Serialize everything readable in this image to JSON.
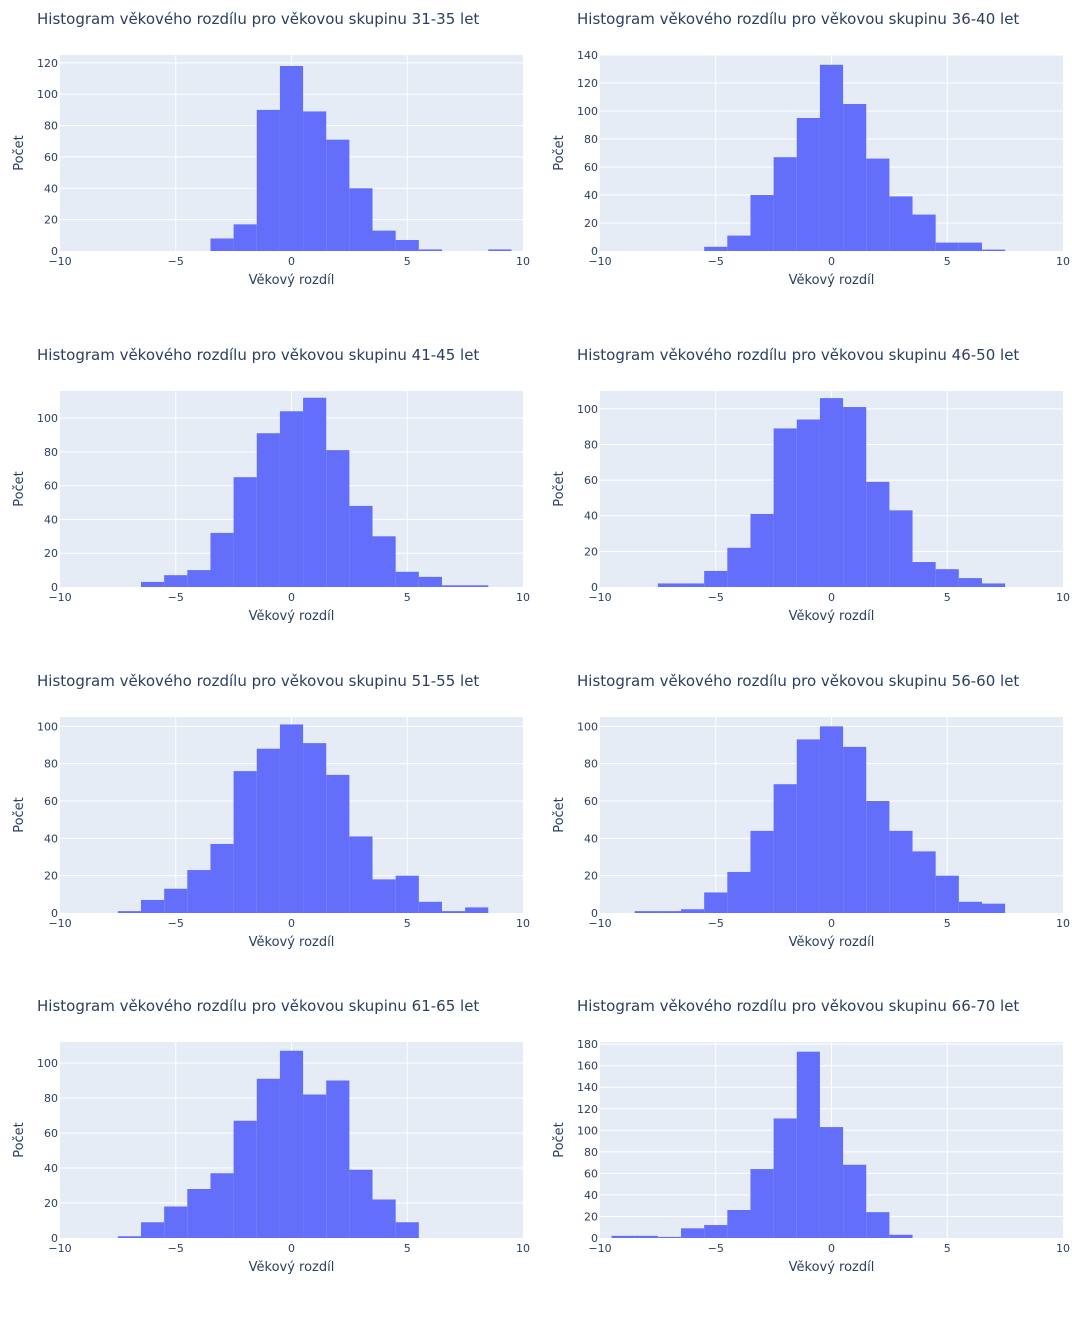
{
  "colors": {
    "bar": "#636efa",
    "plot_bg": "#e5ecf6",
    "grid": "#ffffff",
    "text": "#2a3f5f"
  },
  "chart_data": [
    {
      "type": "bar",
      "title": "Histogram věkového rozdílu pro věkovou skupinu 31-35 let",
      "xlabel": "Věkový rozdíl",
      "ylabel": "Počet",
      "xlim": [
        -10,
        10
      ],
      "ylim": [
        0,
        125
      ],
      "xticks": [
        "−10",
        "−5",
        "0",
        "5",
        "10"
      ],
      "xtick_values": [
        -10,
        -5,
        0,
        5,
        10
      ],
      "yticks": [
        0,
        20,
        40,
        60,
        80,
        100,
        120
      ],
      "bin_width": 1,
      "bin_edges_start": [
        -3.5,
        -2.5,
        -1.5,
        -0.5,
        0.5,
        1.5,
        2.5,
        3.5,
        4.5,
        5.5,
        8.5
      ],
      "values": [
        8,
        17,
        90,
        118,
        89,
        71,
        40,
        13,
        7,
        1,
        1
      ]
    },
    {
      "type": "bar",
      "title": "Histogram věkového rozdílu pro věkovou skupinu 36-40 let",
      "xlabel": "Věkový rozdíl",
      "ylabel": "Počet",
      "xlim": [
        -10,
        10
      ],
      "ylim": [
        0,
        140
      ],
      "xticks": [
        "−10",
        "−5",
        "0",
        "5",
        "10"
      ],
      "xtick_values": [
        -10,
        -5,
        0,
        5,
        10
      ],
      "yticks": [
        0,
        20,
        40,
        60,
        80,
        100,
        120,
        140
      ],
      "bin_width": 1,
      "bin_edges_start": [
        -5.5,
        -4.5,
        -3.5,
        -2.5,
        -1.5,
        -0.5,
        0.5,
        1.5,
        2.5,
        3.5,
        4.5,
        5.5,
        6.5
      ],
      "values": [
        3,
        11,
        40,
        67,
        95,
        133,
        105,
        66,
        39,
        26,
        6,
        6,
        1
      ]
    },
    {
      "type": "bar",
      "title": "Histogram věkového rozdílu pro věkovou skupinu 41-45 let",
      "xlabel": "Věkový rozdíl",
      "ylabel": "Počet",
      "xlim": [
        -10,
        10
      ],
      "ylim": [
        0,
        116
      ],
      "xticks": [
        "−10",
        "−5",
        "0",
        "5",
        "10"
      ],
      "xtick_values": [
        -10,
        -5,
        0,
        5,
        10
      ],
      "yticks": [
        0,
        20,
        40,
        60,
        80,
        100
      ],
      "bin_width": 1,
      "bin_edges_start": [
        -6.5,
        -5.5,
        -4.5,
        -3.5,
        -2.5,
        -1.5,
        -0.5,
        0.5,
        1.5,
        2.5,
        3.5,
        4.5,
        5.5,
        6.5,
        7.5
      ],
      "values": [
        3,
        7,
        10,
        32,
        65,
        91,
        104,
        112,
        81,
        48,
        30,
        9,
        6,
        1,
        1
      ]
    },
    {
      "type": "bar",
      "title": "Histogram věkového rozdílu pro věkovou skupinu 46-50 let",
      "xlabel": "Věkový rozdíl",
      "ylabel": "Počet",
      "xlim": [
        -10,
        10
      ],
      "ylim": [
        0,
        110
      ],
      "xticks": [
        "−10",
        "−5",
        "0",
        "5",
        "10"
      ],
      "xtick_values": [
        -10,
        -5,
        0,
        5,
        10
      ],
      "yticks": [
        0,
        20,
        40,
        60,
        80,
        100
      ],
      "bin_width": 1,
      "bin_edges_start": [
        -7.5,
        -6.5,
        -5.5,
        -4.5,
        -3.5,
        -2.5,
        -1.5,
        -0.5,
        0.5,
        1.5,
        2.5,
        3.5,
        4.5,
        5.5,
        6.5
      ],
      "values": [
        2,
        2,
        9,
        22,
        41,
        89,
        94,
        106,
        101,
        59,
        43,
        14,
        10,
        5,
        2
      ]
    },
    {
      "type": "bar",
      "title": "Histogram věkového rozdílu pro věkovou skupinu 51-55 let",
      "xlabel": "Věkový rozdíl",
      "ylabel": "Počet",
      "xlim": [
        -10,
        10
      ],
      "ylim": [
        0,
        105
      ],
      "xticks": [
        "−10",
        "−5",
        "0",
        "5",
        "10"
      ],
      "xtick_values": [
        -10,
        -5,
        0,
        5,
        10
      ],
      "yticks": [
        0,
        20,
        40,
        60,
        80,
        100
      ],
      "bin_width": 1,
      "bin_edges_start": [
        -7.5,
        -6.5,
        -5.5,
        -4.5,
        -3.5,
        -2.5,
        -1.5,
        -0.5,
        0.5,
        1.5,
        2.5,
        3.5,
        4.5,
        5.5,
        6.5,
        7.5
      ],
      "values": [
        1,
        7,
        13,
        23,
        37,
        76,
        88,
        101,
        91,
        74,
        41,
        18,
        20,
        6,
        1,
        3
      ]
    },
    {
      "type": "bar",
      "title": "Histogram věkového rozdílu pro věkovou skupinu 56-60 let",
      "xlabel": "Věkový rozdíl",
      "ylabel": "Počet",
      "xlim": [
        -10,
        10
      ],
      "ylim": [
        0,
        105
      ],
      "xticks": [
        "−10",
        "−5",
        "0",
        "5",
        "10"
      ],
      "xtick_values": [
        -10,
        -5,
        0,
        5,
        10
      ],
      "yticks": [
        0,
        20,
        40,
        60,
        80,
        100
      ],
      "bin_width": 1,
      "bin_edges_start": [
        -8.5,
        -7.5,
        -6.5,
        -5.5,
        -4.5,
        -3.5,
        -2.5,
        -1.5,
        -0.5,
        0.5,
        1.5,
        2.5,
        3.5,
        4.5,
        5.5,
        6.5
      ],
      "values": [
        1,
        1,
        2,
        11,
        22,
        44,
        69,
        93,
        100,
        89,
        60,
        44,
        33,
        20,
        6,
        5
      ]
    },
    {
      "type": "bar",
      "title": "Histogram věkového rozdílu pro věkovou skupinu 61-65 let",
      "xlabel": "Věkový rozdíl",
      "ylabel": "Počet",
      "xlim": [
        -10,
        10
      ],
      "ylim": [
        0,
        112
      ],
      "xticks": [
        "−10",
        "−5",
        "0",
        "5",
        "10"
      ],
      "xtick_values": [
        -10,
        -5,
        0,
        5,
        10
      ],
      "yticks": [
        0,
        20,
        40,
        60,
        80,
        100
      ],
      "bin_width": 1,
      "bin_edges_start": [
        -7.5,
        -6.5,
        -5.5,
        -4.5,
        -3.5,
        -2.5,
        -1.5,
        -0.5,
        0.5,
        1.5,
        2.5,
        3.5,
        4.5
      ],
      "values": [
        1,
        9,
        18,
        28,
        37,
        67,
        91,
        107,
        82,
        90,
        39,
        22,
        9
      ]
    },
    {
      "type": "bar",
      "title": "Histogram věkového rozdílu pro věkovou skupinu 66-70 let",
      "xlabel": "Věkový rozdíl",
      "ylabel": "Počet",
      "xlim": [
        -10,
        10
      ],
      "ylim": [
        0,
        182
      ],
      "xticks": [
        "−10",
        "−5",
        "0",
        "5",
        "10"
      ],
      "xtick_values": [
        -10,
        -5,
        0,
        5,
        10
      ],
      "yticks": [
        0,
        20,
        40,
        60,
        80,
        100,
        120,
        140,
        160,
        180
      ],
      "bin_width": 1,
      "bin_edges_start": [
        -9.5,
        -8.5,
        -7.5,
        -6.5,
        -5.5,
        -4.5,
        -3.5,
        -2.5,
        -1.5,
        -0.5,
        0.5,
        1.5,
        2.5
      ],
      "values": [
        2,
        2,
        1,
        9,
        12,
        26,
        64,
        111,
        173,
        103,
        68,
        24,
        3
      ]
    }
  ]
}
